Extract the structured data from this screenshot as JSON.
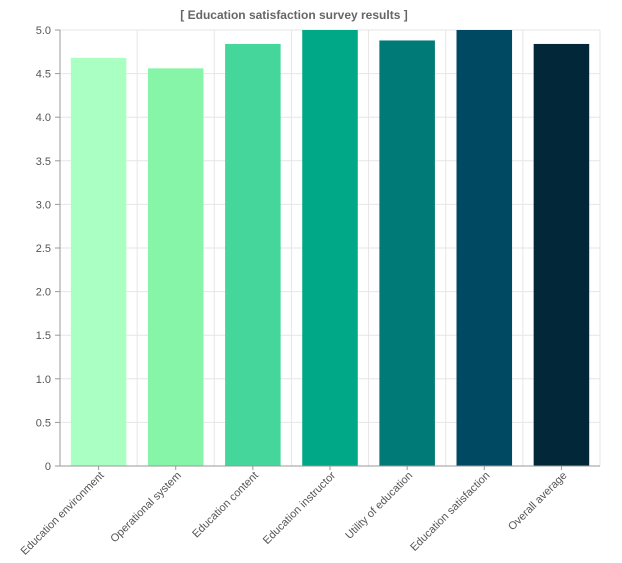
{
  "chart_data": {
    "type": "bar",
    "title": "[ Education satisfaction survey results ]",
    "xlabel": "",
    "ylabel": "",
    "ylim": [
      0,
      5
    ],
    "yticks": [
      "0",
      "0.5",
      "1.0",
      "1.5",
      "2.0",
      "2.5",
      "3.0",
      "3.5",
      "4.0",
      "4.5",
      "5.0"
    ],
    "grid": true,
    "categories": [
      "Education environment",
      "Operational system",
      "Education content",
      "Education instructor",
      "Utility of education",
      "Education satisfaction",
      "Overall average"
    ],
    "values": [
      4.68,
      4.56,
      4.84,
      5.0,
      4.88,
      5.0,
      4.84
    ],
    "colors": [
      "#aaffc3",
      "#86f5a8",
      "#45d69c",
      "#00a887",
      "#007a77",
      "#004962",
      "#022738"
    ]
  }
}
